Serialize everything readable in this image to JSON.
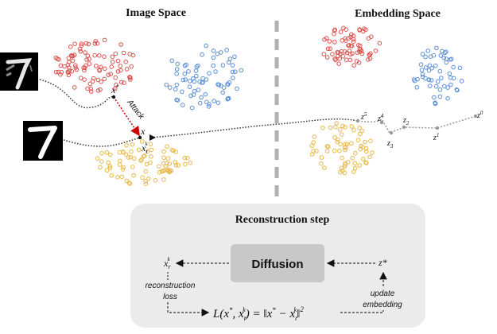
{
  "titles": {
    "image_space": "Image Space",
    "embedding_space": "Embedding Space",
    "reconstruction": "Reconstruction step"
  },
  "labels": {
    "x_star": "x",
    "x": "x",
    "x_r": "x",
    "attack": "Attack",
    "z5": "z",
    "z4": "z",
    "z3": "z",
    "z2": "z",
    "z1": "z",
    "z0": "z",
    "diffusion": "Diffusion",
    "xrk": "x",
    "zstar": "z*",
    "reconstruction_loss_1": "reconstruction",
    "reconstruction_loss_2": "loss",
    "update_embedding_1": "update",
    "update_embedding_2": "embedding"
  },
  "colors": {
    "red": "#d9534f",
    "blue": "#5b8fd6",
    "yellow": "#e8b84a",
    "attack": "#cc0000",
    "panel_bg": "#ebebeb",
    "diffusion_box": "#c8c8c8",
    "divider": "#b0b0b0"
  },
  "digit_images": [
    "digit-7-adversarial",
    "digit-7-clean"
  ]
}
